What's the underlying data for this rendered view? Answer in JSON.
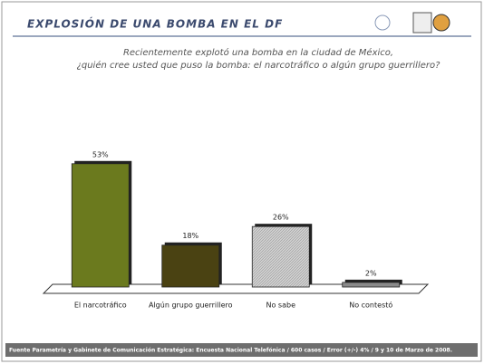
{
  "chart_data": {
    "type": "bar",
    "title": "EXPLOSIÓN DE UNA BOMBA EN EL DF",
    "subtitle": [
      "Recientemente explotó una bomba en la ciudad de México,",
      "¿quién cree usted que puso la bomba: el narcotráfico o algún grupo guerrillero?"
    ],
    "categories": [
      "El narcotráfico",
      "Algún grupo guerrillero",
      "No sabe",
      "No contestó"
    ],
    "values": [
      53,
      18,
      26,
      2
    ],
    "value_labels": [
      "53%",
      "18%",
      "26%",
      "2%"
    ],
    "colors": [
      "#6b7a1e",
      "#4a4212",
      "#c4c4c4",
      "#8a8a8a"
    ],
    "source": "Fuente Parametría y Gabinete de Comunicación Estratégica: Encuesta Nacional Telefónica / 600 casos / Error (+/-) 4% / 9 y 10 de Marzo de 2008."
  }
}
